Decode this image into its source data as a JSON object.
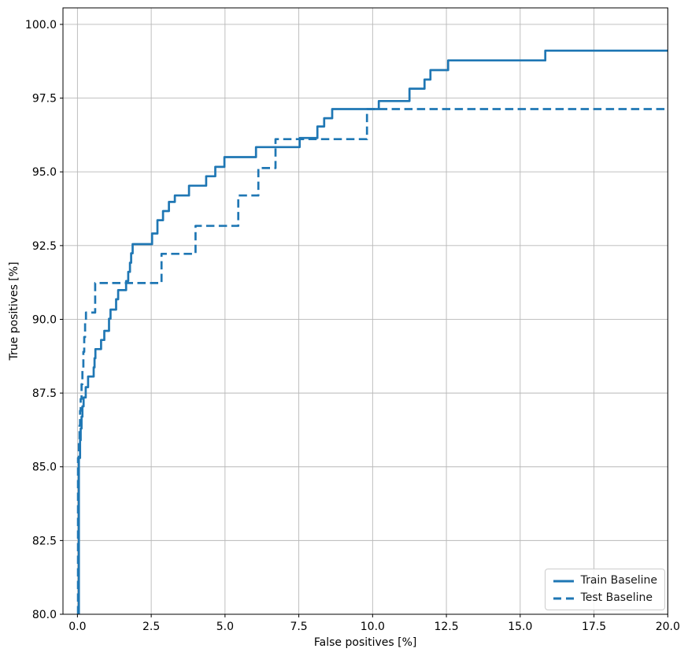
{
  "chart_data": {
    "type": "line",
    "subtype": "step-roc-curves",
    "title": "",
    "xlabel": "False positives [%]",
    "ylabel": "True positives [%]",
    "xlim": [
      -0.49,
      20
    ],
    "ylim": [
      80,
      100.56
    ],
    "grid": true,
    "grid_color": "#b8b8b8",
    "spine_color": "#000000",
    "legend_position": "lower right",
    "x_ticks": [
      0,
      2.5,
      5,
      7.5,
      10,
      12.5,
      15,
      17.5,
      20
    ],
    "x_tick_labels": [
      "0.0",
      "2.5",
      "5.0",
      "7.5",
      "10.0",
      "12.5",
      "15.0",
      "17.5",
      "20.0"
    ],
    "y_ticks": [
      80,
      82.5,
      85,
      87.5,
      90,
      92.5,
      95,
      97.5,
      100
    ],
    "y_tick_labels": [
      "80.0",
      "82.5",
      "85.0",
      "87.5",
      "90.0",
      "92.5",
      "95.0",
      "97.5",
      "100.0"
    ],
    "series": [
      {
        "name": "Train Baseline",
        "color": "#1f77b4",
        "style": "solid",
        "line_width": 2.7,
        "start": [
          0.05,
          80
        ],
        "end_x": 20,
        "steps": [
          [
            0.05,
            85.3
          ],
          [
            0.09,
            85.9
          ],
          [
            0.11,
            86.3
          ],
          [
            0.14,
            86.7
          ],
          [
            0.17,
            87.05
          ],
          [
            0.21,
            87.35
          ],
          [
            0.28,
            87.7
          ],
          [
            0.36,
            88.06
          ],
          [
            0.55,
            88.37
          ],
          [
            0.58,
            88.68
          ],
          [
            0.61,
            88.99
          ],
          [
            0.8,
            89.3
          ],
          [
            0.91,
            89.61
          ],
          [
            1.07,
            90.02
          ],
          [
            1.12,
            90.33
          ],
          [
            1.31,
            90.68
          ],
          [
            1.38,
            90.99
          ],
          [
            1.65,
            91.3
          ],
          [
            1.72,
            91.61
          ],
          [
            1.78,
            91.92
          ],
          [
            1.82,
            92.24
          ],
          [
            1.87,
            92.55
          ],
          [
            2.53,
            92.91
          ],
          [
            2.71,
            93.36
          ],
          [
            2.9,
            93.67
          ],
          [
            3.1,
            93.98
          ],
          [
            3.3,
            94.2
          ],
          [
            3.78,
            94.53
          ],
          [
            4.36,
            94.85
          ],
          [
            4.67,
            95.17
          ],
          [
            4.98,
            95.5
          ],
          [
            6.05,
            95.84
          ],
          [
            7.53,
            96.15
          ],
          [
            8.13,
            96.54
          ],
          [
            8.36,
            96.82
          ],
          [
            8.63,
            97.13
          ],
          [
            10.21,
            97.4
          ],
          [
            11.25,
            97.82
          ],
          [
            11.76,
            98.13
          ],
          [
            11.96,
            98.45
          ],
          [
            12.56,
            98.78
          ],
          [
            15.85,
            99.11
          ]
        ]
      },
      {
        "name": "Test Baseline",
        "color": "#1f77b4",
        "style": "dashed",
        "line_width": 2.7,
        "start": [
          0.02,
          80
        ],
        "end_x": 20,
        "steps": [
          [
            0.02,
            85.3
          ],
          [
            0.05,
            85.9
          ],
          [
            0.07,
            86.4
          ],
          [
            0.09,
            86.9
          ],
          [
            0.11,
            87.3
          ],
          [
            0.14,
            87.8
          ],
          [
            0.17,
            88.3
          ],
          [
            0.2,
            88.9
          ],
          [
            0.23,
            89.4
          ],
          [
            0.26,
            89.9
          ],
          [
            0.29,
            90.23
          ],
          [
            0.6,
            91.23
          ],
          [
            2.85,
            92.22
          ],
          [
            4.0,
            93.17
          ],
          [
            5.45,
            94.2
          ],
          [
            6.13,
            95.13
          ],
          [
            6.71,
            96.11
          ],
          [
            9.81,
            97.13
          ]
        ]
      }
    ]
  },
  "legend": {
    "items": [
      {
        "label": "Train Baseline"
      },
      {
        "label": "Test Baseline"
      }
    ]
  }
}
